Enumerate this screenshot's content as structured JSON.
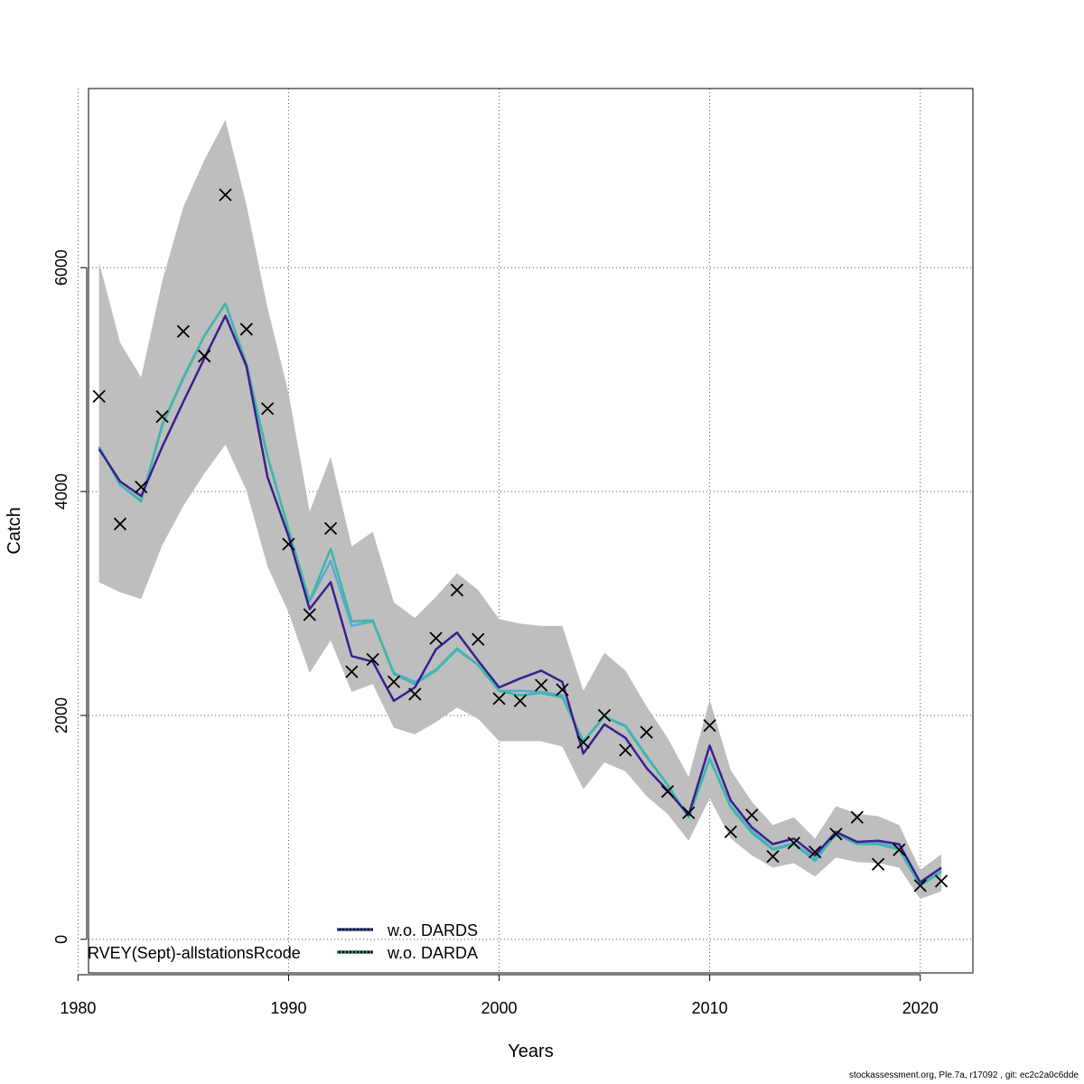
{
  "footer": "stockassessment.org, Ple.7a, r17092 , git: ec2c2a0c6dde",
  "chart_data": {
    "type": "line",
    "xlabel": "Years",
    "ylabel": "Catch",
    "xlim": [
      1980.5,
      2022.5
    ],
    "ylim": [
      -300,
      7600
    ],
    "xticks": [
      1980,
      1990,
      2000,
      2010,
      2020
    ],
    "yticks": [
      0,
      2000,
      4000,
      6000
    ],
    "grid": true,
    "fleet_label": "RVEY(Sept)-allstationsRcode",
    "legend": {
      "position": "bottom-left",
      "entries": [
        {
          "label": "w.o. DARDS",
          "color": "#1f3fbf",
          "style": "dotted"
        },
        {
          "label": "w.o. DARDA",
          "color": "#1a8a7a",
          "style": "dotted"
        }
      ]
    },
    "years": [
      1981,
      1982,
      1983,
      1984,
      1985,
      1986,
      1987,
      1988,
      1989,
      1990,
      1991,
      1992,
      1993,
      1994,
      1995,
      1996,
      1997,
      1998,
      1999,
      2000,
      2001,
      2002,
      2003,
      2004,
      2005,
      2006,
      2007,
      2008,
      2009,
      2010,
      2011,
      2012,
      2013,
      2014,
      2015,
      2016,
      2017,
      2018,
      2019,
      2020,
      2021
    ],
    "band": {
      "color": "#bebebe",
      "upper": [
        6050,
        5330,
        5020,
        5880,
        6540,
        6960,
        7320,
        6560,
        5640,
        4880,
        3820,
        4310,
        3510,
        3640,
        3010,
        2870,
        3060,
        3270,
        3120,
        2860,
        2820,
        2800,
        2800,
        2220,
        2560,
        2400,
        2080,
        1800,
        1450,
        2140,
        1510,
        1230,
        1020,
        1090,
        900,
        1190,
        1120,
        1100,
        1020,
        620,
        760
      ],
      "lower": [
        3190,
        3100,
        3040,
        3520,
        3870,
        4160,
        4420,
        4010,
        3330,
        2920,
        2380,
        2670,
        2210,
        2280,
        1890,
        1830,
        1940,
        2070,
        1970,
        1770,
        1770,
        1770,
        1720,
        1340,
        1580,
        1500,
        1280,
        1120,
        880,
        1260,
        900,
        750,
        640,
        680,
        560,
        730,
        690,
        680,
        640,
        360,
        430
      ]
    },
    "series": [
      {
        "name": "",
        "color": "#3b1f8f",
        "width": 2.5,
        "values": [
          4380,
          4090,
          3960,
          4400,
          4800,
          5190,
          5570,
          5120,
          4130,
          3600,
          2950,
          3190,
          2530,
          2480,
          2130,
          2250,
          2590,
          2740,
          2490,
          2250,
          2330,
          2400,
          2300,
          1660,
          1920,
          1800,
          1530,
          1330,
          1110,
          1730,
          1240,
          1000,
          850,
          900,
          750,
          960,
          870,
          880,
          850,
          510,
          640
        ]
      },
      {
        "name": "w.o. DARDS",
        "color": "#5aa9d6",
        "width": 2.5,
        "values": [
          4400,
          4060,
          3920,
          4600,
          5020,
          5390,
          5680,
          5140,
          4320,
          3660,
          3020,
          3380,
          2800,
          2840,
          2380,
          2300,
          2410,
          2600,
          2450,
          2220,
          2220,
          2210,
          2180,
          1760,
          1990,
          1910,
          1640,
          1380,
          1090,
          1620,
          1190,
          970,
          810,
          860,
          720,
          940,
          860,
          860,
          820,
          500,
          620
        ]
      },
      {
        "name": "w.o. DARDA",
        "color": "#3fb8a8",
        "width": 2.5,
        "values": [
          4400,
          4060,
          3910,
          4590,
          5010,
          5390,
          5680,
          5140,
          4310,
          3660,
          3020,
          3490,
          2840,
          2850,
          2370,
          2280,
          2400,
          2590,
          2450,
          2220,
          2180,
          2200,
          2160,
          1770,
          1990,
          1900,
          1630,
          1380,
          1090,
          1610,
          1180,
          950,
          800,
          850,
          700,
          940,
          850,
          850,
          800,
          480,
          600
        ]
      }
    ],
    "observed": {
      "marker": "x",
      "color": "#000000",
      "values": [
        4850,
        3710,
        4040,
        4670,
        5430,
        5210,
        6650,
        5450,
        4740,
        3530,
        2900,
        3670,
        2390,
        2500,
        2300,
        2190,
        2690,
        3120,
        2680,
        2150,
        2130,
        2270,
        2230,
        1760,
        2000,
        1690,
        1850,
        1320,
        1130,
        1910,
        960,
        1110,
        740,
        860,
        780,
        940,
        1090,
        670,
        800,
        480,
        520
      ]
    }
  }
}
